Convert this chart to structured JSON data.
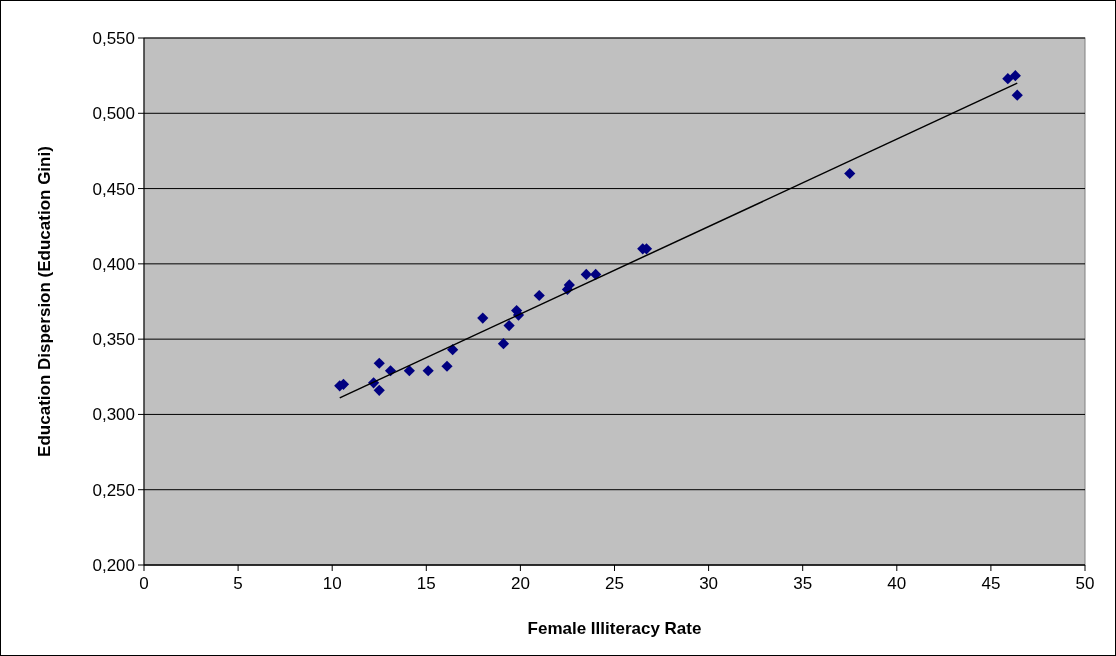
{
  "chart_data": {
    "type": "scatter",
    "xlabel": "Female Illiteracy Rate",
    "ylabel": "Education Dispersion (Education Gini)",
    "xlim": [
      0,
      50
    ],
    "xticks": [
      0,
      5,
      10,
      15,
      20,
      25,
      30,
      35,
      40,
      45,
      50
    ],
    "ylim": [
      0.2,
      0.55
    ],
    "yticks": [
      {
        "value": 0.2,
        "label": "0,200"
      },
      {
        "value": 0.25,
        "label": "0,250"
      },
      {
        "value": 0.3,
        "label": "0,300"
      },
      {
        "value": 0.35,
        "label": "0,350"
      },
      {
        "value": 0.4,
        "label": "0,400"
      },
      {
        "value": 0.45,
        "label": "0,450"
      },
      {
        "value": 0.5,
        "label": "0,500"
      },
      {
        "value": 0.55,
        "label": "0,550"
      }
    ],
    "grid": "y",
    "marker": "diamond",
    "series": [
      {
        "color": "#000080",
        "x": [
          10.4,
          10.6,
          12.2,
          12.5,
          12.5,
          13.1,
          14.1,
          15.1,
          16.1,
          16.4,
          18.0,
          19.1,
          19.4,
          19.8,
          19.9,
          21.0,
          22.5,
          22.6,
          23.5,
          24.0,
          26.5,
          26.7,
          37.5,
          45.9,
          46.3,
          46.4
        ],
        "values": [
          0.319,
          0.32,
          0.321,
          0.334,
          0.316,
          0.329,
          0.329,
          0.329,
          0.332,
          0.343,
          0.364,
          0.347,
          0.359,
          0.369,
          0.366,
          0.379,
          0.383,
          0.386,
          0.393,
          0.393,
          0.41,
          0.41,
          0.46,
          0.523,
          0.525,
          0.512
        ]
      },
      {
        "type": "line",
        "color": "#000000",
        "marker": "none",
        "x": [
          10.4,
          46.4
        ],
        "values": [
          0.311,
          0.52
        ]
      }
    ]
  }
}
